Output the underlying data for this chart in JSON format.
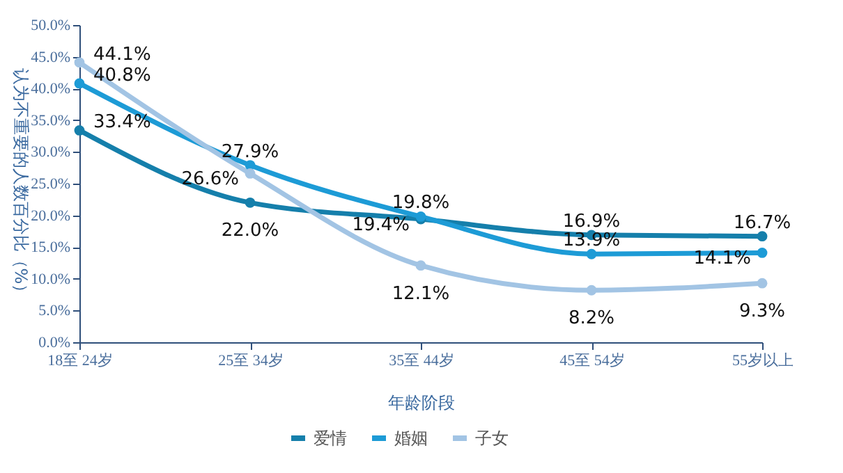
{
  "chart_data": {
    "type": "line",
    "xlabel": "年龄阶段",
    "ylabel": "认为不重要的人数百分比（%）",
    "categories": [
      "18至 24岁",
      "25至 34岁",
      "35至 44岁",
      "45至 54岁",
      "55岁以上"
    ],
    "series": [
      {
        "name": "爱情",
        "color": "#157fab",
        "values": [
          33.4,
          22.0,
          19.4,
          16.9,
          16.7
        ],
        "value_labels": [
          "33.4%",
          "22.0%",
          "19.4%",
          "16.9%",
          "16.7%"
        ]
      },
      {
        "name": "婚姻",
        "color": "#1d9bd6",
        "values": [
          40.8,
          27.9,
          19.8,
          13.9,
          14.1
        ],
        "value_labels": [
          "40.8%",
          "27.9%",
          "19.8%",
          "13.9%",
          "14.1%"
        ]
      },
      {
        "name": "子女",
        "color": "#a2c4e4",
        "values": [
          44.1,
          26.6,
          12.1,
          8.2,
          9.3
        ],
        "value_labels": [
          "44.1%",
          "26.6%",
          "12.1%",
          "8.2%",
          "9.3%"
        ]
      }
    ],
    "ylim": [
      0,
      50
    ],
    "yticks": [
      {
        "value": 0,
        "label": "0.0%"
      },
      {
        "value": 5,
        "label": "5.0%"
      },
      {
        "value": 10,
        "label": "10.0%"
      },
      {
        "value": 15,
        "label": "15.0%"
      },
      {
        "value": 20,
        "label": "20.0%"
      },
      {
        "value": 25,
        "label": "25.0%"
      },
      {
        "value": 30,
        "label": "30.0%"
      },
      {
        "value": 35,
        "label": "35.0%"
      },
      {
        "value": 40,
        "label": "40.0%"
      },
      {
        "value": 45,
        "label": "45.0%"
      },
      {
        "value": 50,
        "label": "50.0%"
      }
    ],
    "grid": false,
    "legend": "bottom",
    "marker": "circle",
    "line_style": "solid"
  }
}
